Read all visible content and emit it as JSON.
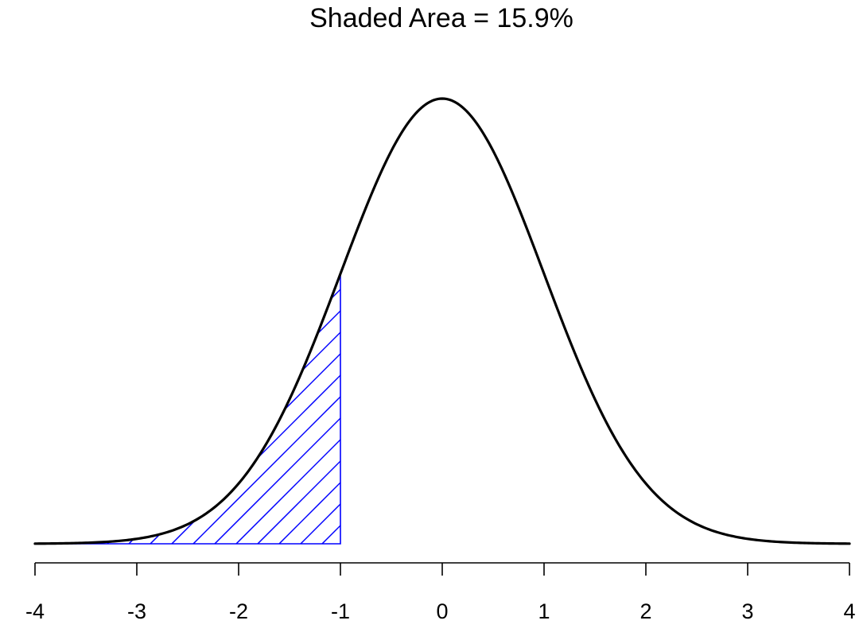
{
  "chart_data": {
    "type": "area",
    "title": "Shaded Area = 15.9%",
    "distribution": "standard normal",
    "mean": 0,
    "sd": 1,
    "xlim": [
      -4,
      4
    ],
    "x_ticks": [
      -4,
      -3,
      -2,
      -1,
      0,
      1,
      2,
      3,
      4
    ],
    "x_tick_labels": [
      "-4",
      "-3",
      "-2",
      "-1",
      "0",
      "1",
      "2",
      "3",
      "4"
    ],
    "shaded_region": {
      "from": -4,
      "to": -1,
      "pattern": "diagonal-hatch"
    },
    "shaded_area_percent": 15.9,
    "y_axis_shown": false,
    "grid": false,
    "colors": {
      "curve": "#000000",
      "shading": "#0000ff",
      "axis": "#000000",
      "background": "#ffffff"
    }
  }
}
